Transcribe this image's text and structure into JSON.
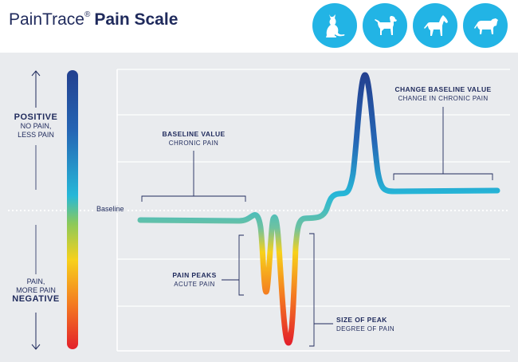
{
  "header": {
    "brand": "PainTrace",
    "trademark": "®",
    "subtitle": "Pain Scale",
    "animals": [
      "cat-icon",
      "dog-icon",
      "horse-icon",
      "cow-icon"
    ]
  },
  "scale": {
    "positive": {
      "title": "POSITIVE",
      "line1": "NO PAIN,",
      "line2": "LESS PAIN"
    },
    "negative": {
      "line1": "PAIN,",
      "line2": "MORE PAIN",
      "title": "NEGATIVE"
    },
    "baseline_label": "Baseline"
  },
  "annotations": {
    "baseline_value": {
      "title": "BASELINE VALUE",
      "sub": "CHRONIC PAIN"
    },
    "change_baseline": {
      "title": "CHANGE BASELINE VALUE",
      "sub": "CHANGE IN CHRONIC PAIN"
    },
    "pain_peaks": {
      "title": "PAIN PEAKS",
      "sub": "ACUTE PAIN"
    },
    "size_of_peak": {
      "title": "SIZE OF PEAK",
      "sub": "DEGREE OF PAIN"
    }
  },
  "colors": {
    "navy": "#1f2a5c",
    "icon_blue": "#22b4e5",
    "panel_bg": "#e9ebee"
  }
}
